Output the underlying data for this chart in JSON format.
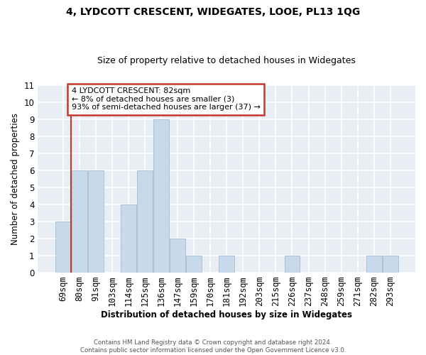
{
  "title": "4, LYDCOTT CRESCENT, WIDEGATES, LOOE, PL13 1QG",
  "subtitle": "Size of property relative to detached houses in Widegates",
  "xlabel": "Distribution of detached houses by size in Widegates",
  "ylabel": "Number of detached properties",
  "bin_labels": [
    "69sqm",
    "80sqm",
    "91sqm",
    "103sqm",
    "114sqm",
    "125sqm",
    "136sqm",
    "147sqm",
    "159sqm",
    "170sqm",
    "181sqm",
    "192sqm",
    "203sqm",
    "215sqm",
    "226sqm",
    "237sqm",
    "248sqm",
    "259sqm",
    "271sqm",
    "282sqm",
    "293sqm"
  ],
  "bar_heights": [
    3,
    6,
    6,
    0,
    4,
    6,
    9,
    2,
    1,
    0,
    1,
    0,
    0,
    0,
    1,
    0,
    0,
    0,
    0,
    1,
    1
  ],
  "bar_color": "#c8d9ea",
  "bar_edge_color": "#a8c4d8",
  "property_line_x": 0.5,
  "property_line_color": "#c0392b",
  "annotation_text": "4 LYDCOTT CRESCENT: 82sqm\n← 8% of detached houses are smaller (3)\n93% of semi-detached houses are larger (37) →",
  "annotation_box_color": "white",
  "annotation_box_edge_color": "#c0392b",
  "ylim": [
    0,
    11
  ],
  "yticks": [
    0,
    1,
    2,
    3,
    4,
    5,
    6,
    7,
    8,
    9,
    10,
    11
  ],
  "footer_line1": "Contains HM Land Registry data © Crown copyright and database right 2024.",
  "footer_line2": "Contains public sector information licensed under the Open Government Licence v3.0.",
  "bg_color": "#e8eef4"
}
